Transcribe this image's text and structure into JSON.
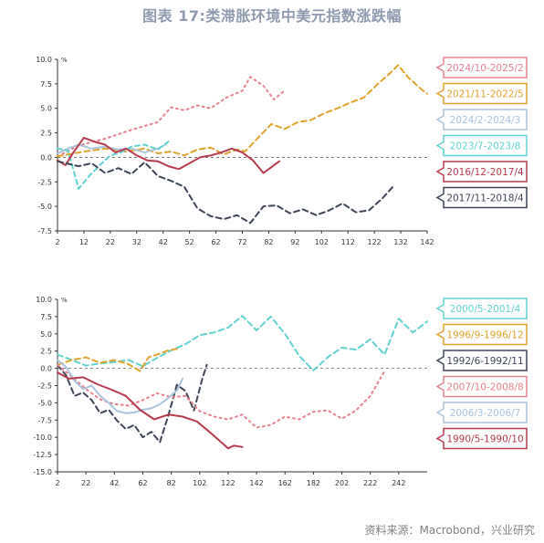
{
  "title": "图表 17:类滞胀环境中美元指数涨跌幅",
  "source": "资料来源：Macrobond，兴业研究",
  "chart_data": [
    {
      "type": "line",
      "unit": "%",
      "ylim": [
        -7.5,
        10
      ],
      "xlim": [
        2,
        142
      ],
      "yticks": [
        10.0,
        7.5,
        5.0,
        2.5,
        0.0,
        -2.5,
        -5.0,
        -7.5
      ],
      "ytick_labels": [
        "10.0",
        "7.5",
        "5.0",
        "2.5",
        "0.0",
        "-2.5",
        "-5.0",
        "-7.5"
      ],
      "xticks": [
        2,
        12,
        22,
        32,
        42,
        52,
        62,
        72,
        82,
        92,
        102,
        112,
        122,
        132,
        142
      ],
      "series": [
        {
          "name": "2024/10-2025/2",
          "color": "#e8818f",
          "dash": "2 4",
          "x": [
            2,
            10,
            20,
            30,
            40,
            45,
            50,
            55,
            60,
            66,
            72,
            75,
            80,
            84,
            88
          ],
          "y": [
            0.1,
            1.2,
            1.9,
            2.8,
            3.6,
            5.1,
            4.8,
            5.3,
            5.0,
            6.1,
            6.8,
            8.2,
            7.3,
            5.9,
            6.8
          ]
        },
        {
          "name": "2021/11-2022/5",
          "color": "#e0a32e",
          "dash": "6 4",
          "x": [
            2,
            10,
            20,
            28,
            35,
            40,
            45,
            50,
            55,
            60,
            65,
            70,
            73,
            78,
            83,
            88,
            93,
            98,
            103,
            108,
            113,
            118,
            123,
            128,
            131,
            135,
            140,
            142
          ],
          "y": [
            0.1,
            0.5,
            0.9,
            0.6,
            0.9,
            0.4,
            0.6,
            0.2,
            0.8,
            1.0,
            0.3,
            0.8,
            0.6,
            2.0,
            3.4,
            2.9,
            3.6,
            3.8,
            4.5,
            5.0,
            5.6,
            6.1,
            7.4,
            8.6,
            9.4,
            8.1,
            6.9,
            6.5
          ]
        },
        {
          "name": "2024/2-2024/3",
          "color": "#a9c4dc",
          "dash": "",
          "x": [
            2,
            6,
            10,
            15,
            20,
            25,
            30,
            35,
            40,
            43
          ],
          "y": [
            0.4,
            0.9,
            1.3,
            0.9,
            1.1,
            0.8,
            0.9,
            0.5,
            0.9,
            1.3
          ]
        },
        {
          "name": "2023/7-2023/8",
          "color": "#5fd3d0",
          "dash": "5 4",
          "x": [
            2,
            6,
            10,
            14,
            18,
            22,
            26,
            30,
            35,
            40,
            44
          ],
          "y": [
            0.9,
            0.7,
            -3.2,
            -1.9,
            -0.8,
            0.2,
            0.5,
            1.1,
            1.3,
            0.8,
            1.6
          ]
        },
        {
          "name": "2016/12-2017/4",
          "color": "#b83a4e",
          "dash": "",
          "x": [
            2,
            5,
            8,
            12,
            16,
            20,
            24,
            28,
            32,
            36,
            40,
            44,
            48,
            52,
            56,
            60,
            64,
            68,
            72,
            76,
            80,
            83,
            86
          ],
          "y": [
            -0.3,
            -0.8,
            0.5,
            2.0,
            1.6,
            1.3,
            0.5,
            0.9,
            0.2,
            -0.3,
            -0.4,
            -0.9,
            -1.2,
            -0.6,
            0.0,
            0.2,
            0.5,
            0.9,
            0.5,
            -0.3,
            -1.6,
            -1.0,
            -0.4
          ]
        },
        {
          "name": "2017/11-2018/4",
          "color": "#3d4656",
          "dash": "6 4",
          "x": [
            2,
            10,
            15,
            20,
            25,
            30,
            35,
            40,
            45,
            50,
            55,
            60,
            65,
            70,
            75,
            80,
            85,
            90,
            95,
            100,
            105,
            110,
            115,
            120,
            125,
            129
          ],
          "y": [
            -0.4,
            -0.9,
            -0.6,
            -1.6,
            -1.1,
            -1.7,
            -0.5,
            -1.9,
            -2.4,
            -3.0,
            -5.2,
            -6.0,
            -6.3,
            -5.9,
            -6.7,
            -5.0,
            -4.9,
            -5.7,
            -5.3,
            -5.9,
            -5.4,
            -4.7,
            -5.6,
            -5.4,
            -4.2,
            -3.0
          ]
        }
      ]
    },
    {
      "type": "line",
      "unit": "%",
      "ylim": [
        -15,
        10
      ],
      "xlim": [
        2,
        262
      ],
      "yticks": [
        10.0,
        7.5,
        5.0,
        2.5,
        0.0,
        -2.5,
        -5.0,
        -7.5,
        -10.0,
        -12.5,
        -15.0
      ],
      "ytick_labels": [
        "10.0",
        "7.5",
        "5.0",
        "2.5",
        "0.0",
        "-2.5",
        "-5.0",
        "-7.5",
        "-10.0",
        "-12.5",
        "-15.0"
      ],
      "xticks": [
        2,
        22,
        42,
        62,
        82,
        102,
        122,
        142,
        162,
        182,
        202,
        222,
        242
      ],
      "series": [
        {
          "name": "2000/5-2001/4",
          "color": "#5fd3d0",
          "dash": "6 4",
          "x": [
            2,
            12,
            22,
            32,
            42,
            52,
            62,
            72,
            82,
            92,
            102,
            112,
            122,
            132,
            142,
            152,
            162,
            172,
            182,
            192,
            202,
            212,
            222,
            232,
            242,
            252,
            262
          ],
          "y": [
            2.0,
            1.2,
            0.4,
            0.7,
            0.9,
            1.2,
            0.3,
            1.5,
            2.6,
            3.5,
            4.8,
            5.2,
            5.9,
            7.6,
            5.5,
            7.5,
            5.0,
            1.8,
            -0.3,
            1.6,
            3.0,
            2.7,
            4.2,
            2.0,
            7.2,
            5.2,
            6.8
          ]
        },
        {
          "name": "1996/9-1996/12",
          "color": "#e0a32e",
          "dash": "6 4",
          "x": [
            2,
            12,
            22,
            32,
            42,
            52,
            60,
            66,
            72,
            80,
            88
          ],
          "y": [
            0.5,
            1.2,
            1.6,
            0.8,
            1.2,
            0.6,
            -0.4,
            1.6,
            2.0,
            2.6,
            2.9
          ]
        },
        {
          "name": "1992/6-1992/11",
          "color": "#3d4656",
          "dash": "6 4",
          "x": [
            2,
            8,
            14,
            20,
            26,
            32,
            38,
            44,
            50,
            56,
            62,
            68,
            74,
            80,
            86,
            92,
            98,
            104,
            107
          ],
          "y": [
            0.5,
            -1.0,
            -4.0,
            -3.5,
            -4.6,
            -6.5,
            -6.0,
            -7.6,
            -8.8,
            -8.2,
            -10.0,
            -9.2,
            -10.7,
            -6.8,
            -2.4,
            -3.3,
            -6.1,
            -1.4,
            0.5
          ]
        },
        {
          "name": "2007/10-2008/8",
          "color": "#e8818f",
          "dash": "2 4",
          "x": [
            2,
            12,
            22,
            32,
            42,
            52,
            62,
            72,
            82,
            92,
            102,
            112,
            122,
            132,
            142,
            152,
            162,
            172,
            182,
            192,
            202,
            212,
            222,
            232
          ],
          "y": [
            0.5,
            -1.2,
            -3.0,
            -4.5,
            -5.2,
            -5.4,
            -4.6,
            -3.6,
            -4.2,
            -4.0,
            -6.2,
            -7.0,
            -7.4,
            -6.7,
            -8.6,
            -8.2,
            -7.0,
            -7.4,
            -6.3,
            -6.1,
            -7.3,
            -6.1,
            -4.0,
            -0.4
          ]
        },
        {
          "name": "2006/3-2006/7",
          "color": "#a9c4dc",
          "dash": "",
          "x": [
            2,
            8,
            14,
            20,
            26,
            32,
            38,
            44,
            50,
            56,
            62,
            68,
            74,
            80,
            86,
            90
          ],
          "y": [
            1.2,
            0.2,
            -1.8,
            -3.0,
            -2.5,
            -4.0,
            -5.0,
            -6.2,
            -6.5,
            -6.4,
            -6.0,
            -5.8,
            -5.2,
            -4.3,
            -3.2,
            -1.5
          ]
        },
        {
          "name": "1990/5-1990/10",
          "color": "#b83a4e",
          "dash": "",
          "x": [
            2,
            10,
            20,
            30,
            40,
            50,
            60,
            70,
            80,
            90,
            100,
            110,
            116,
            122,
            126,
            132
          ],
          "y": [
            -0.6,
            -1.5,
            -1.3,
            -2.3,
            -3.1,
            -4.0,
            -6.0,
            -7.4,
            -6.7,
            -7.0,
            -7.7,
            -9.4,
            -10.5,
            -11.6,
            -11.2,
            -11.4
          ]
        }
      ]
    }
  ]
}
